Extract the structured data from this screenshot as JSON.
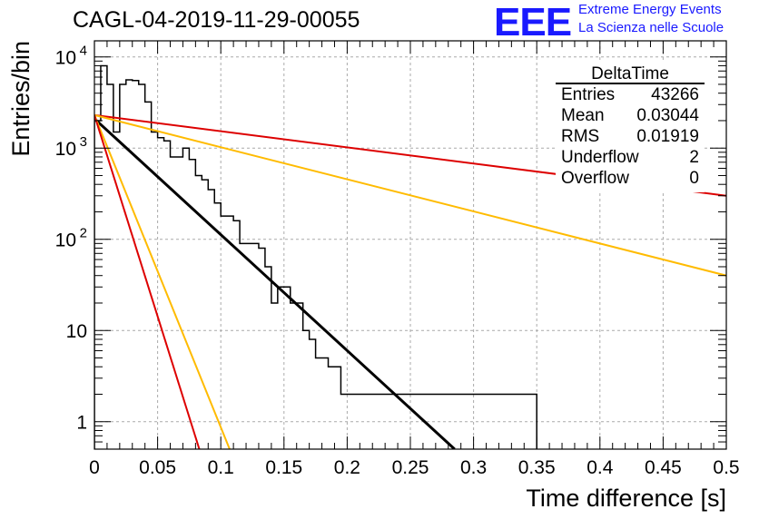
{
  "header": {
    "title": "CAGL-04-2019-11-29-00055",
    "logo_text": "EEE",
    "logo_line1": "Extreme Energy Events",
    "logo_line2": "La Scienza nelle Scuole",
    "logo_color": "#1a1aff"
  },
  "stats": {
    "title": "DeltaTime",
    "rows": [
      {
        "label": "Entries",
        "value": "43266"
      },
      {
        "label": "Mean",
        "value": "0.03044"
      },
      {
        "label": "RMS",
        "value": "0.01919"
      },
      {
        "label": "Underflow",
        "value": "2"
      },
      {
        "label": "Overflow",
        "value": "0"
      }
    ]
  },
  "chart_data": {
    "type": "line",
    "xlabel": "Time difference [s]",
    "ylabel": "Entries/bin",
    "xlim": [
      0,
      0.5
    ],
    "ylim": [
      0.5,
      15000
    ],
    "log_y": true,
    "grid": true,
    "x_ticks": [
      "0",
      "0.05",
      "0.1",
      "0.15",
      "0.2",
      "0.25",
      "0.3",
      "0.35",
      "0.4",
      "0.45",
      "0.5"
    ],
    "y_ticks": [
      {
        "value": 1,
        "label": "1"
      },
      {
        "value": 10,
        "label": "10"
      },
      {
        "value": 100,
        "label": "10",
        "exp": "2"
      },
      {
        "value": 1000,
        "label": "10",
        "exp": "3"
      },
      {
        "value": 10000,
        "label": "10",
        "exp": "4"
      }
    ],
    "histogram": {
      "bin_width": 0.005,
      "color": "#000000",
      "counts": [
        2000,
        8000,
        5000,
        1500,
        5000,
        5600,
        5500,
        5000,
        3200,
        1500,
        1300,
        1200,
        800,
        800,
        1000,
        750,
        500,
        450,
        350,
        250,
        180,
        180,
        160,
        90,
        90,
        90,
        80,
        50,
        20,
        30,
        30,
        20,
        20,
        10,
        8,
        5,
        5,
        4,
        4,
        2,
        2,
        2,
        2,
        2,
        2,
        2,
        2,
        2,
        2,
        2,
        2,
        2,
        2,
        2,
        2,
        2,
        2,
        2,
        2,
        2,
        2,
        2,
        2,
        2,
        2,
        2,
        2,
        2,
        2,
        2
      ]
    },
    "series": [
      {
        "color": "#dd0000",
        "points": [
          [
            0,
            2300
          ],
          [
            0.5,
            300
          ]
        ]
      },
      {
        "color": "#ffbb00",
        "points": [
          [
            0,
            2300
          ],
          [
            0.5,
            40
          ]
        ]
      },
      {
        "color": "#000000",
        "points": [
          [
            0,
            2100
          ],
          [
            0.285,
            0.5
          ]
        ]
      },
      {
        "color": "#ffbb00",
        "points": [
          [
            0,
            2300
          ],
          [
            0.107,
            0.5
          ]
        ]
      },
      {
        "color": "#dd0000",
        "points": [
          [
            0,
            2300
          ],
          [
            0.083,
            0.5
          ]
        ]
      }
    ]
  }
}
